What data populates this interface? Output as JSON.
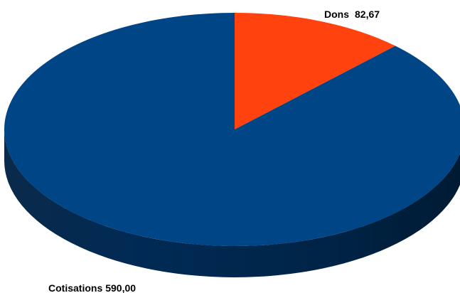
{
  "chart_data": {
    "type": "pie",
    "style": "3d",
    "categories": [
      "Dons",
      "Cotisations"
    ],
    "values": [
      82.67,
      590.0
    ],
    "value_labels": [
      "82,67",
      "590,00"
    ],
    "colors": [
      "#ff420e",
      "#004586"
    ],
    "legend": "none",
    "title": ""
  }
}
